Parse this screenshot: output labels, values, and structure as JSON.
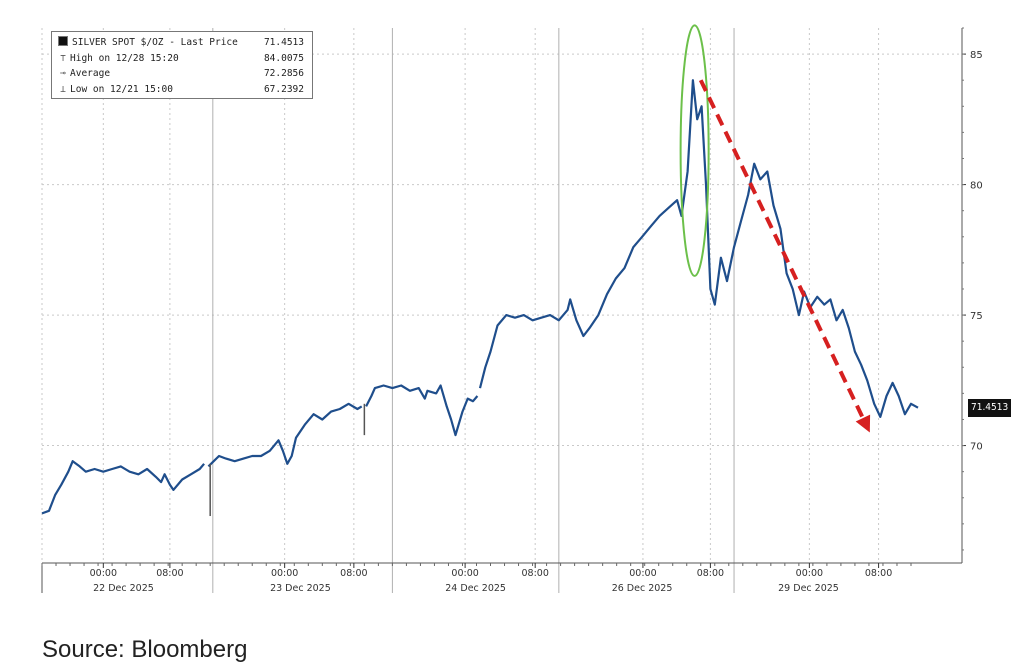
{
  "chart_data": {
    "type": "line",
    "title": "",
    "series": [
      {
        "name": "SILVER SPOT $/OZ - Last Price",
        "color": "#1f4e8c",
        "points": [
          [
            0,
            67.4
          ],
          [
            0.8,
            67.5
          ],
          [
            1.5,
            68.1
          ],
          [
            2.2,
            68.5
          ],
          [
            3.0,
            69.0
          ],
          [
            3.5,
            69.4
          ],
          [
            4.3,
            69.2
          ],
          [
            5.0,
            69.0
          ],
          [
            6.0,
            69.1
          ],
          [
            7.0,
            69.0
          ],
          [
            8.0,
            69.1
          ],
          [
            9.0,
            69.2
          ],
          [
            10.0,
            69.0
          ],
          [
            11.0,
            68.9
          ],
          [
            12.0,
            69.1
          ],
          [
            13.0,
            68.8
          ],
          [
            13.6,
            68.6
          ],
          [
            14.0,
            68.9
          ],
          [
            14.6,
            68.5
          ],
          [
            15.0,
            68.3
          ],
          [
            16.0,
            68.7
          ],
          [
            17.0,
            68.9
          ],
          [
            18.0,
            69.1
          ],
          [
            18.5,
            69.3
          ],
          [
            19.0,
            69.2
          ],
          [
            19.6,
            69.4
          ],
          [
            20.2,
            69.6
          ],
          [
            21.0,
            69.5
          ],
          [
            22.0,
            69.4
          ],
          [
            23.0,
            69.5
          ],
          [
            24.0,
            69.6
          ],
          [
            25.0,
            69.6
          ],
          [
            26.0,
            69.8
          ],
          [
            27.0,
            70.2
          ],
          [
            27.5,
            69.8
          ],
          [
            28.0,
            69.3
          ],
          [
            28.5,
            69.6
          ],
          [
            29.0,
            70.3
          ],
          [
            30.0,
            70.8
          ],
          [
            31.0,
            71.2
          ],
          [
            32.0,
            71.0
          ],
          [
            33.0,
            71.3
          ],
          [
            34.0,
            71.4
          ],
          [
            35.0,
            71.6
          ],
          [
            36.0,
            71.4
          ],
          [
            36.5,
            71.5
          ],
          [
            37.0,
            71.5
          ],
          [
            37.6,
            71.9
          ],
          [
            38.0,
            72.2
          ],
          [
            39.0,
            72.3
          ],
          [
            40.0,
            72.2
          ],
          [
            41.0,
            72.3
          ],
          [
            42.0,
            72.1
          ],
          [
            43.0,
            72.2
          ],
          [
            43.7,
            71.8
          ],
          [
            44.0,
            72.1
          ],
          [
            45.0,
            72.0
          ],
          [
            45.5,
            72.3
          ],
          [
            46.2,
            71.5
          ],
          [
            46.7,
            71.0
          ],
          [
            47.2,
            70.4
          ],
          [
            48.0,
            71.3
          ],
          [
            48.6,
            71.8
          ],
          [
            49.2,
            71.7
          ],
          [
            49.7,
            71.9
          ],
          [
            50.0,
            72.2
          ],
          [
            50.6,
            73.0
          ],
          [
            51.2,
            73.6
          ],
          [
            52.0,
            74.6
          ],
          [
            53.0,
            75.0
          ],
          [
            54.0,
            74.9
          ],
          [
            55.0,
            75.0
          ],
          [
            56.0,
            74.8
          ],
          [
            57.0,
            74.9
          ],
          [
            58.0,
            75.0
          ],
          [
            59.0,
            74.8
          ],
          [
            60.0,
            75.2
          ],
          [
            60.3,
            75.6
          ],
          [
            61.0,
            74.8
          ],
          [
            61.8,
            74.2
          ],
          [
            62.5,
            74.5
          ],
          [
            63.5,
            75.0
          ],
          [
            64.5,
            75.8
          ],
          [
            65.5,
            76.4
          ],
          [
            66.5,
            76.8
          ],
          [
            67.5,
            77.6
          ],
          [
            68.5,
            78.0
          ],
          [
            69.5,
            78.4
          ],
          [
            70.5,
            78.8
          ],
          [
            71.5,
            79.1
          ],
          [
            72.5,
            79.4
          ],
          [
            73.0,
            78.8
          ],
          [
            73.7,
            80.5
          ],
          [
            74.3,
            84.0
          ],
          [
            74.8,
            82.5
          ],
          [
            75.3,
            83.0
          ],
          [
            75.8,
            80.0
          ],
          [
            76.3,
            76.0
          ],
          [
            76.8,
            75.4
          ],
          [
            77.5,
            77.2
          ],
          [
            78.2,
            76.3
          ],
          [
            79.0,
            77.6
          ],
          [
            79.8,
            78.6
          ],
          [
            80.6,
            79.6
          ],
          [
            81.3,
            80.8
          ],
          [
            82.0,
            80.2
          ],
          [
            82.8,
            80.5
          ],
          [
            83.5,
            79.2
          ],
          [
            84.3,
            78.3
          ],
          [
            85.0,
            76.6
          ],
          [
            85.7,
            76.0
          ],
          [
            86.4,
            75.0
          ],
          [
            87.0,
            75.9
          ],
          [
            87.7,
            75.3
          ],
          [
            88.5,
            75.7
          ],
          [
            89.3,
            75.4
          ],
          [
            90.0,
            75.6
          ],
          [
            90.7,
            74.8
          ],
          [
            91.4,
            75.2
          ],
          [
            92.1,
            74.5
          ],
          [
            92.8,
            73.6
          ],
          [
            93.5,
            73.1
          ],
          [
            94.2,
            72.5
          ],
          [
            95.0,
            71.6
          ],
          [
            95.7,
            71.1
          ],
          [
            96.4,
            71.9
          ],
          [
            97.1,
            72.4
          ],
          [
            97.8,
            71.9
          ],
          [
            98.5,
            71.2
          ],
          [
            99.2,
            71.6
          ],
          [
            100,
            71.4513
          ]
        ]
      }
    ],
    "gaps_x": [
      18.5,
      36.5,
      49.7
    ],
    "x_unit": "percent of time axis",
    "ylim": [
      65.5,
      86
    ],
    "y_ticks": [
      70,
      75,
      80,
      85
    ],
    "x_ticks": [
      {
        "x": 7.0,
        "label": "00:00"
      },
      {
        "x": 14.6,
        "label": "08:00"
      },
      {
        "x": 27.7,
        "label": "00:00"
      },
      {
        "x": 35.6,
        "label": "08:00"
      },
      {
        "x": 48.3,
        "label": "00:00"
      },
      {
        "x": 56.3,
        "label": "08:00"
      },
      {
        "x": 68.6,
        "label": "00:00"
      },
      {
        "x": 76.3,
        "label": "08:00"
      },
      {
        "x": 87.6,
        "label": "00:00"
      },
      {
        "x": 95.5,
        "label": "08:00"
      }
    ],
    "x_date_labels": [
      {
        "x": 9.3,
        "label": "22 Dec 2025"
      },
      {
        "x": 29.5,
        "label": "23 Dec 2025"
      },
      {
        "x": 49.5,
        "label": "24 Dec 2025"
      },
      {
        "x": 68.5,
        "label": "26 Dec 2025"
      },
      {
        "x": 87.5,
        "label": "29 Dec 2025"
      }
    ],
    "day_separators_x": [
      19.5,
      40.0,
      59.0,
      79.0
    ],
    "vertical_gridlines_x": [
      7.0,
      14.6,
      27.7,
      35.6,
      48.3,
      56.3,
      68.6,
      76.3,
      87.6,
      95.5
    ],
    "grid": true,
    "legend": {
      "placement": "top-left",
      "entries": [
        {
          "label": "SILVER SPOT $/OZ - Last Price",
          "value": "71.4513"
        },
        {
          "label": "High on 12/28 15:20",
          "value": "84.0075"
        },
        {
          "label": "Average",
          "value": "72.2856"
        },
        {
          "label": "Low on 12/21 15:00",
          "value": "67.2392"
        }
      ]
    },
    "last_price_label": "71.4513",
    "annotations": {
      "ellipse": {
        "color": "#6cc04a",
        "x_center": 74.5,
        "y_center": 81.3,
        "x_radius": 1.6,
        "y_radius": 4.8
      },
      "arrow": {
        "color": "#d62020",
        "from": [
          75.2,
          84.0
        ],
        "to": [
          94.5,
          70.5
        ]
      }
    },
    "source": "Source: Bloomberg"
  }
}
